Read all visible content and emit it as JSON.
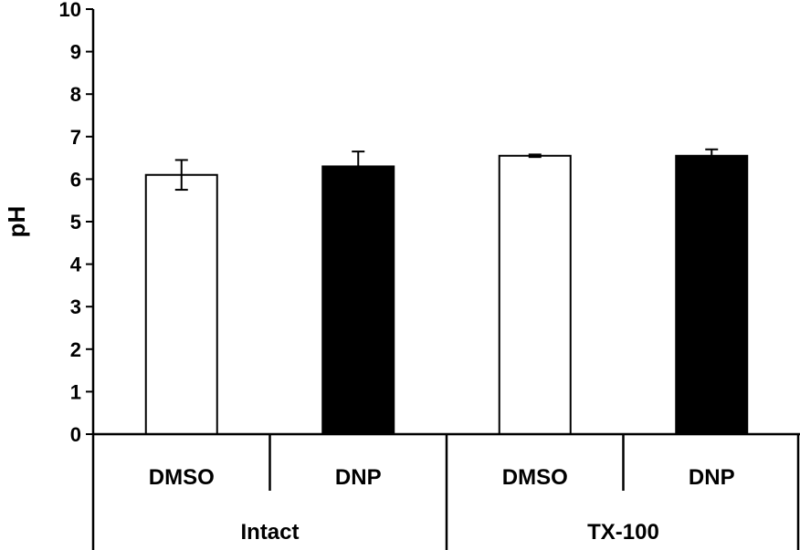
{
  "chart_data": {
    "type": "bar",
    "ylabel": "pH",
    "ylim": [
      0,
      10
    ],
    "yticks": [
      0,
      1,
      2,
      3,
      4,
      5,
      6,
      7,
      8,
      9,
      10
    ],
    "groups": [
      "Intact",
      "TX-100"
    ],
    "categories": [
      "DMSO",
      "DNP",
      "DMSO",
      "DNP"
    ],
    "bars": [
      {
        "group": "Intact",
        "label": "DMSO",
        "value": 6.1,
        "error": 0.35,
        "fill": "#ffffff"
      },
      {
        "group": "Intact",
        "label": "DNP",
        "value": 6.3,
        "error": 0.35,
        "fill": "#000000"
      },
      {
        "group": "TX-100",
        "label": "DMSO",
        "value": 6.55,
        "error": 0.03,
        "fill": "#ffffff"
      },
      {
        "group": "TX-100",
        "label": "DNP",
        "value": 6.55,
        "error": 0.15,
        "fill": "#000000"
      }
    ],
    "grid": false,
    "legend": "none"
  }
}
